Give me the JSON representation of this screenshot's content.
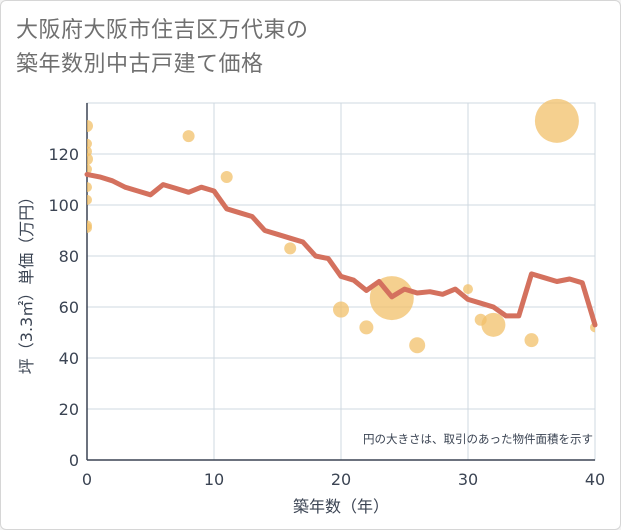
{
  "title_line1": "大阪府大阪市住吉区万代東の",
  "title_line2": "築年数別中古戸建て価格",
  "chart_data": {
    "type": "bubble+line",
    "xlabel": "築年数（年）",
    "ylabel": "坪（3.3㎡）単価（万円）",
    "xlim": [
      0,
      40
    ],
    "ylim": [
      0,
      140
    ],
    "xticks": [
      0,
      10,
      20,
      30,
      40
    ],
    "yticks": [
      0,
      20,
      40,
      60,
      80,
      100,
      120
    ],
    "grid": true,
    "note": "円の大きさは、取引のあった物件面積を示す",
    "colors": {
      "line": "#d4715e",
      "bubble": "#f1c06a",
      "grid": "#cfd8e0",
      "axis": "#3b4453"
    },
    "line": {
      "x": [
        0,
        1,
        2,
        3,
        4,
        5,
        6,
        7,
        8,
        9,
        10,
        11,
        12,
        13,
        14,
        15,
        16,
        17,
        18,
        19,
        20,
        21,
        22,
        23,
        24,
        25,
        26,
        27,
        28,
        29,
        30,
        31,
        32,
        33,
        34,
        35,
        36,
        37,
        38,
        39,
        40
      ],
      "y": [
        112,
        111,
        109.5,
        107,
        105.5,
        104,
        108,
        106.5,
        105,
        107,
        105.5,
        98.5,
        97,
        95.5,
        90,
        88.5,
        87,
        85.5,
        80,
        79,
        72,
        70.5,
        66.5,
        70,
        64,
        67,
        65.5,
        66,
        65,
        67,
        63,
        61.5,
        60,
        56.5,
        56.5,
        73,
        71.5,
        70,
        71,
        69.5,
        53
      ]
    },
    "bubbles": [
      {
        "x": 0,
        "y": 131,
        "r": 6
      },
      {
        "x": 0,
        "y": 124,
        "r": 5
      },
      {
        "x": 0,
        "y": 121,
        "r": 5
      },
      {
        "x": 0,
        "y": 118,
        "r": 6
      },
      {
        "x": 0,
        "y": 114,
        "r": 5
      },
      {
        "x": 0,
        "y": 107,
        "r": 5
      },
      {
        "x": 0,
        "y": 102,
        "r": 5
      },
      {
        "x": 0,
        "y": 92,
        "r": 5
      },
      {
        "x": 0,
        "y": 91,
        "r": 5
      },
      {
        "x": 8,
        "y": 127,
        "r": 6
      },
      {
        "x": 11,
        "y": 111,
        "r": 6
      },
      {
        "x": 16,
        "y": 83,
        "r": 6
      },
      {
        "x": 20,
        "y": 59,
        "r": 8
      },
      {
        "x": 22,
        "y": 52,
        "r": 7
      },
      {
        "x": 24,
        "y": 63.5,
        "r": 22
      },
      {
        "x": 26,
        "y": 45,
        "r": 8
      },
      {
        "x": 30,
        "y": 67,
        "r": 5
      },
      {
        "x": 31,
        "y": 55,
        "r": 6
      },
      {
        "x": 32,
        "y": 53,
        "r": 12
      },
      {
        "x": 35,
        "y": 47,
        "r": 7
      },
      {
        "x": 37,
        "y": 133,
        "r": 22
      },
      {
        "x": 40,
        "y": 52,
        "r": 5
      }
    ]
  }
}
